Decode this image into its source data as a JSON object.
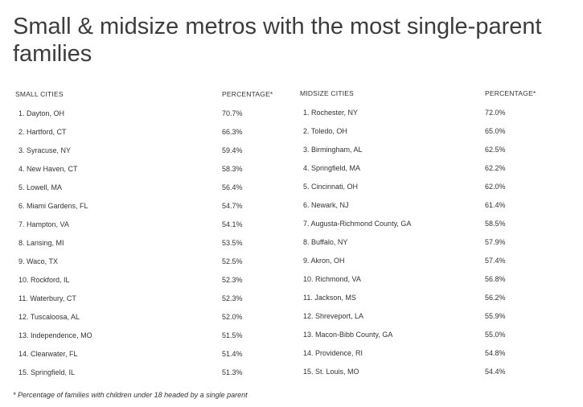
{
  "title": "Small & midsize metros with the most single-parent families",
  "chart_data": [
    {
      "type": "table",
      "columns": [
        "SMALL CITIES",
        "PERCENTAGE*"
      ],
      "rows": [
        [
          "1. Dayton, OH",
          "70.7%"
        ],
        [
          "2. Hartford, CT",
          "66.3%"
        ],
        [
          "3. Syracuse, NY",
          "59.4%"
        ],
        [
          "4. New Haven, CT",
          "58.3%"
        ],
        [
          "5. Lowell, MA",
          "56.4%"
        ],
        [
          "6. Miami Gardens, FL",
          "54.7%"
        ],
        [
          "7. Hampton, VA",
          "54.1%"
        ],
        [
          "8. Lansing, MI",
          "53.5%"
        ],
        [
          "9. Waco, TX",
          "52.5%"
        ],
        [
          "10. Rockford, IL",
          "52.3%"
        ],
        [
          "11. Waterbury, CT",
          "52.3%"
        ],
        [
          "12. Tuscaloosa, AL",
          "52.0%"
        ],
        [
          "13. Independence, MO",
          "51.5%"
        ],
        [
          "14. Clearwater, FL",
          "51.4%"
        ],
        [
          "15. Springfield, IL",
          "51.3%"
        ]
      ]
    },
    {
      "type": "table",
      "columns": [
        "MIDSIZE CITIES",
        "PERCENTAGE*"
      ],
      "rows": [
        [
          "1. Rochester, NY",
          "72.0%"
        ],
        [
          "2. Toledo, OH",
          "65.0%"
        ],
        [
          "3. Birmingham, AL",
          "62.5%"
        ],
        [
          "4. Springfield, MA",
          "62.2%"
        ],
        [
          "5. Cincinnati, OH",
          "62.0%"
        ],
        [
          "6. Newark, NJ",
          "61.4%"
        ],
        [
          "7. Augusta-Richmond County, GA",
          "58.5%"
        ],
        [
          "8. Buffalo, NY",
          "57.9%"
        ],
        [
          "9. Akron, OH",
          "57.4%"
        ],
        [
          "10. Richmond, VA",
          "56.8%"
        ],
        [
          "11. Jackson, MS",
          "56.2%"
        ],
        [
          "12. Shreveport, LA",
          "55.9%"
        ],
        [
          "13. Macon-Bibb County, GA",
          "55.0%"
        ],
        [
          "14. Providence, RI",
          "54.8%"
        ],
        [
          "15. St. Louis, MO",
          "54.4%"
        ]
      ]
    }
  ],
  "footnote": "* Percentage of families with children under 18 headed by a single parent"
}
